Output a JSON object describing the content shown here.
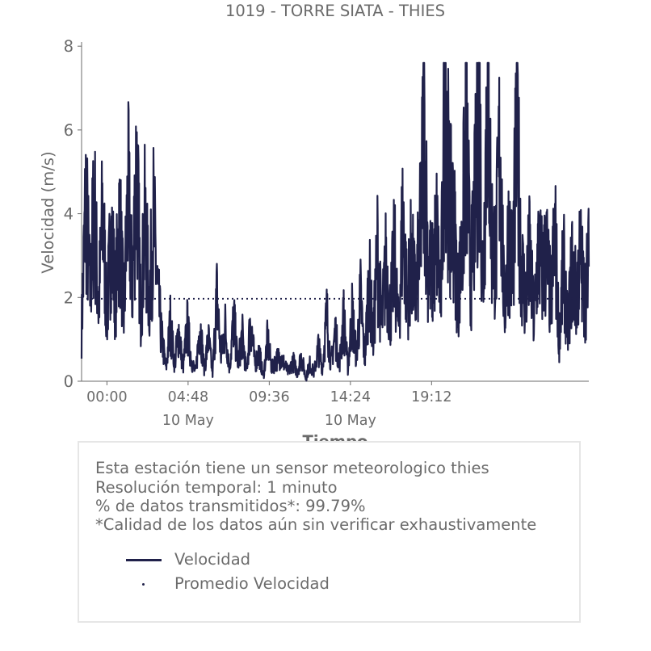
{
  "chart_data": {
    "type": "line",
    "title": "1019 - TORRE SIATA - THIES",
    "xlabel": "Tiempo",
    "ylabel": "Velocidad (m/s)",
    "ylim": [
      0,
      8.1
    ],
    "x_range_hours": [
      -1.5,
      28.5
    ],
    "x_ticks": [
      {
        "hour": 0,
        "label": "00:00",
        "sublabel": ""
      },
      {
        "hour": 4.8,
        "label": "04:48",
        "sublabel": "10 May"
      },
      {
        "hour": 9.6,
        "label": "09:36",
        "sublabel": ""
      },
      {
        "hour": 14.4,
        "label": "14:24",
        "sublabel": "10 May"
      },
      {
        "hour": 19.2,
        "label": "19:12",
        "sublabel": ""
      }
    ],
    "y_ticks": [
      0,
      2,
      4,
      6,
      8
    ],
    "grid": false,
    "colors": {
      "series": "#20214a",
      "axis": "#6b6b6b",
      "text": "#6b6b6b"
    },
    "series": [
      {
        "name": "Velocidad",
        "style": "solid",
        "x": [
          -1.5,
          -1.25,
          -1.0,
          -0.75,
          -0.5,
          -0.25,
          0.0,
          0.25,
          0.5,
          0.75,
          1.0,
          1.25,
          1.5,
          1.75,
          2.0,
          2.25,
          2.5,
          2.75,
          3.0,
          3.25,
          3.5,
          3.75,
          4.0,
          4.25,
          4.5,
          4.75,
          5.0,
          5.25,
          5.5,
          5.75,
          6.0,
          6.25,
          6.5,
          6.75,
          7.0,
          7.25,
          7.5,
          7.75,
          8.0,
          8.25,
          8.5,
          8.75,
          9.0,
          9.25,
          9.5,
          9.75,
          10.0,
          10.25,
          10.5,
          10.75,
          11.0,
          11.25,
          11.5,
          11.75,
          12.0,
          12.25,
          12.5,
          12.75,
          13.0,
          13.25,
          13.5,
          13.75,
          14.0,
          14.25,
          14.5,
          14.75,
          15.0,
          15.25,
          15.5,
          15.75,
          16.0,
          16.25,
          16.5,
          16.75,
          17.0,
          17.25,
          17.5,
          17.75,
          18.0,
          18.25,
          18.5,
          18.75,
          19.0,
          19.25,
          19.5,
          19.75,
          20.0,
          20.25,
          20.5,
          20.75,
          21.0,
          21.25,
          21.5,
          21.75,
          22.0,
          22.25,
          22.5,
          22.75,
          23.0,
          23.25,
          23.5,
          23.75,
          24.0,
          24.25,
          24.5,
          24.75,
          25.0,
          25.25,
          25.5,
          25.75,
          26.0,
          26.25,
          26.5,
          26.75,
          27.0,
          27.25,
          27.5,
          27.75,
          28.0,
          28.25,
          28.5
        ],
        "y": [
          1.2,
          4.4,
          2.1,
          4.3,
          1.7,
          4.0,
          1.5,
          3.6,
          2.0,
          3.9,
          1.6,
          4.5,
          2.2,
          5.3,
          1.7,
          3.8,
          1.9,
          3.8,
          2.1,
          1.0,
          0.3,
          1.4,
          0.4,
          1.2,
          0.3,
          1.3,
          0.5,
          0.2,
          1.4,
          0.3,
          1.0,
          0.2,
          2.0,
          0.6,
          1.3,
          0.3,
          1.5,
          0.4,
          1.1,
          0.2,
          1.5,
          0.4,
          0.7,
          0.1,
          1.0,
          0.3,
          0.5,
          0.6,
          0.4,
          0.2,
          0.5,
          0.2,
          0.6,
          0.1,
          0.4,
          0.2,
          0.8,
          0.3,
          1.6,
          0.4,
          1.2,
          0.4,
          1.5,
          0.3,
          1.6,
          0.6,
          2.0,
          0.5,
          2.5,
          1.0,
          3.1,
          1.3,
          2.8,
          1.6,
          3.0,
          1.2,
          4.0,
          1.9,
          3.0,
          2.0,
          3.2,
          6.0,
          2.8,
          2.5,
          3.5,
          1.9,
          7.5,
          4.0,
          3.9,
          2.1,
          3.0,
          6.2,
          2.3,
          4.0,
          6.7,
          2.2,
          7.6,
          3.5,
          2.9,
          5.8,
          1.6,
          3.5,
          2.6,
          6.0,
          2.9,
          1.9,
          3.0,
          1.4,
          3.1,
          2.6,
          3.0,
          1.9,
          3.5,
          1.0,
          2.8,
          1.2,
          2.7,
          2.0,
          3.0,
          1.9,
          2.8
        ],
        "x_dense": true
      },
      {
        "name": "Promedio Velocidad",
        "style": "dotted",
        "value": 1.97
      }
    ]
  },
  "info": {
    "line1": "Esta estación tiene un sensor meteorologico thies",
    "line2": "Resolución temporal: 1 minuto",
    "line3": "% de datos transmitidos*: 99.79%",
    "line4": "*Calidad de los datos aún sin verificar exhaustivamente"
  },
  "legend": {
    "item1": "Velocidad",
    "item2": "Promedio Velocidad"
  }
}
